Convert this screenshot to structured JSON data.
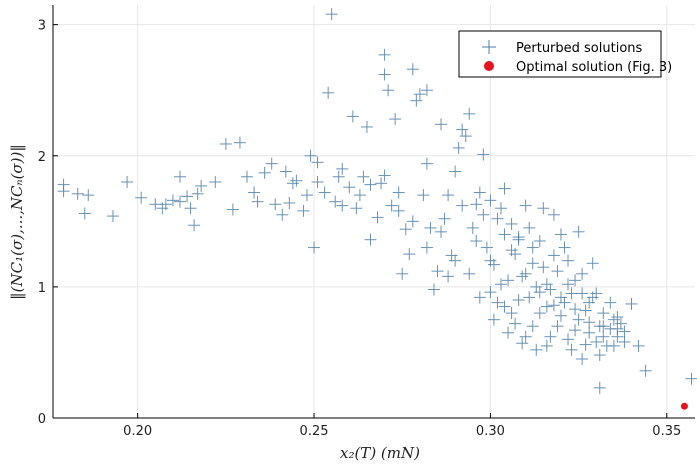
{
  "chart_data": {
    "type": "scatter",
    "title": "",
    "xlabel": "x₂(T)        (mN)",
    "ylabel": "‖(NC₁(σ),...,NCₙ(σ))‖",
    "xlim": [
      0.176,
      0.358
    ],
    "ylim": [
      0,
      3.15
    ],
    "xticks": [
      0.2,
      0.25,
      0.3,
      0.35
    ],
    "xtick_labels": [
      "0.20",
      "0.25",
      "0.30",
      "0.35"
    ],
    "yticks": [
      0,
      1,
      2,
      3
    ],
    "ytick_labels": [
      "0",
      "1",
      "2",
      "3"
    ],
    "grid": true,
    "legend_position": "top-right",
    "colors": {
      "perturbed": "#4f7fa6",
      "optimal": "#e8141c"
    },
    "series": [
      {
        "name": "Perturbed solutions",
        "marker": "plus",
        "points": [
          [
            0.179,
            1.78
          ],
          [
            0.179,
            1.73
          ],
          [
            0.183,
            1.71
          ],
          [
            0.185,
            1.56
          ],
          [
            0.186,
            1.7
          ],
          [
            0.193,
            1.54
          ],
          [
            0.197,
            1.8
          ],
          [
            0.201,
            1.68
          ],
          [
            0.205,
            1.63
          ],
          [
            0.207,
            1.6
          ],
          [
            0.208,
            1.63
          ],
          [
            0.21,
            1.66
          ],
          [
            0.212,
            1.84
          ],
          [
            0.212,
            1.65
          ],
          [
            0.214,
            1.69
          ],
          [
            0.215,
            1.6
          ],
          [
            0.216,
            1.47
          ],
          [
            0.217,
            1.71
          ],
          [
            0.218,
            1.77
          ],
          [
            0.222,
            1.8
          ],
          [
            0.225,
            2.09
          ],
          [
            0.227,
            1.59
          ],
          [
            0.229,
            2.1
          ],
          [
            0.231,
            1.84
          ],
          [
            0.233,
            1.72
          ],
          [
            0.234,
            1.65
          ],
          [
            0.236,
            1.87
          ],
          [
            0.238,
            1.94
          ],
          [
            0.239,
            1.63
          ],
          [
            0.241,
            1.55
          ],
          [
            0.242,
            1.88
          ],
          [
            0.243,
            1.64
          ],
          [
            0.244,
            1.79
          ],
          [
            0.245,
            1.81
          ],
          [
            0.247,
            1.58
          ],
          [
            0.248,
            1.7
          ],
          [
            0.249,
            2.0
          ],
          [
            0.25,
            1.3
          ],
          [
            0.251,
            1.95
          ],
          [
            0.251,
            1.8
          ],
          [
            0.253,
            1.72
          ],
          [
            0.254,
            2.48
          ],
          [
            0.255,
            3.08
          ],
          [
            0.256,
            1.65
          ],
          [
            0.257,
            1.84
          ],
          [
            0.258,
            1.62
          ],
          [
            0.26,
            1.76
          ],
          [
            0.261,
            2.3
          ],
          [
            0.263,
            1.7
          ],
          [
            0.264,
            1.84
          ],
          [
            0.265,
            2.22
          ],
          [
            0.266,
            1.36
          ],
          [
            0.268,
            1.53
          ],
          [
            0.269,
            1.79
          ],
          [
            0.27,
            2.62
          ],
          [
            0.27,
            2.77
          ],
          [
            0.271,
            2.5
          ],
          [
            0.272,
            1.62
          ],
          [
            0.273,
            2.28
          ],
          [
            0.274,
            1.58
          ],
          [
            0.275,
            1.1
          ],
          [
            0.276,
            1.44
          ],
          [
            0.277,
            1.25
          ],
          [
            0.278,
            2.66
          ],
          [
            0.279,
            2.42
          ],
          [
            0.28,
            2.47
          ],
          [
            0.281,
            1.7
          ],
          [
            0.282,
            2.5
          ],
          [
            0.282,
            1.94
          ],
          [
            0.283,
            1.45
          ],
          [
            0.284,
            0.98
          ],
          [
            0.285,
            1.12
          ],
          [
            0.286,
            2.24
          ],
          [
            0.287,
            1.52
          ],
          [
            0.288,
            1.08
          ],
          [
            0.289,
            1.24
          ],
          [
            0.29,
            1.88
          ],
          [
            0.291,
            2.06
          ],
          [
            0.292,
            2.2
          ],
          [
            0.293,
            2.15
          ],
          [
            0.294,
            2.32
          ],
          [
            0.295,
            1.45
          ],
          [
            0.296,
            1.63
          ],
          [
            0.297,
            1.72
          ],
          [
            0.298,
            2.01
          ],
          [
            0.299,
            1.3
          ],
          [
            0.3,
            0.96
          ],
          [
            0.301,
            1.17
          ],
          [
            0.302,
            1.52
          ],
          [
            0.303,
            1.6
          ],
          [
            0.304,
            0.85
          ],
          [
            0.305,
            1.05
          ],
          [
            0.306,
            1.28
          ],
          [
            0.307,
            0.72
          ],
          [
            0.308,
            1.36
          ],
          [
            0.309,
            1.08
          ],
          [
            0.31,
            0.62
          ],
          [
            0.311,
            0.92
          ],
          [
            0.312,
            1.3
          ],
          [
            0.313,
            1.0
          ],
          [
            0.314,
            0.8
          ],
          [
            0.315,
            1.15
          ],
          [
            0.316,
            0.55
          ],
          [
            0.317,
            0.98
          ],
          [
            0.318,
            1.55
          ],
          [
            0.319,
            0.7
          ],
          [
            0.32,
            1.4
          ],
          [
            0.321,
            0.88
          ],
          [
            0.322,
            0.6
          ],
          [
            0.323,
            0.95
          ],
          [
            0.324,
            1.05
          ],
          [
            0.325,
            0.75
          ],
          [
            0.326,
            0.45
          ],
          [
            0.327,
            0.82
          ],
          [
            0.328,
            0.65
          ],
          [
            0.329,
            0.92
          ],
          [
            0.33,
            0.58
          ],
          [
            0.331,
            0.7
          ],
          [
            0.332,
            0.8
          ],
          [
            0.333,
            0.55
          ],
          [
            0.334,
            0.68
          ],
          [
            0.335,
            0.75
          ],
          [
            0.336,
            0.62
          ],
          [
            0.337,
            0.72
          ],
          [
            0.338,
            0.58
          ],
          [
            0.34,
            0.87
          ],
          [
            0.342,
            0.55
          ],
          [
            0.344,
            0.36
          ],
          [
            0.331,
            0.23
          ],
          [
            0.357,
            0.3
          ],
          [
            0.304,
            1.4
          ],
          [
            0.298,
            1.55
          ],
          [
            0.292,
            1.62
          ],
          [
            0.288,
            1.7
          ],
          [
            0.306,
            1.48
          ],
          [
            0.31,
            1.1
          ],
          [
            0.314,
            1.35
          ],
          [
            0.318,
            0.86
          ],
          [
            0.322,
            1.2
          ],
          [
            0.326,
            0.95
          ],
          [
            0.3,
            1.2
          ],
          [
            0.296,
            1.35
          ],
          [
            0.308,
            0.9
          ],
          [
            0.312,
            0.7
          ],
          [
            0.316,
            0.85
          ],
          [
            0.32,
            0.78
          ],
          [
            0.324,
            0.67
          ],
          [
            0.328,
            0.88
          ],
          [
            0.332,
            0.62
          ],
          [
            0.336,
            0.77
          ],
          [
            0.303,
            1.02
          ],
          [
            0.307,
            1.25
          ],
          [
            0.311,
            1.45
          ],
          [
            0.315,
            1.6
          ],
          [
            0.319,
            1.12
          ],
          [
            0.323,
            0.52
          ],
          [
            0.327,
            0.56
          ],
          [
            0.331,
            0.48
          ],
          [
            0.335,
            0.55
          ],
          [
            0.305,
            0.65
          ],
          [
            0.309,
            0.57
          ],
          [
            0.313,
            0.52
          ],
          [
            0.317,
            0.62
          ],
          [
            0.321,
            1.3
          ],
          [
            0.325,
            1.42
          ],
          [
            0.329,
            1.18
          ],
          [
            0.302,
            0.88
          ],
          [
            0.306,
            0.8
          ],
          [
            0.294,
            1.1
          ],
          [
            0.29,
            1.2
          ],
          [
            0.286,
            1.42
          ],
          [
            0.282,
            1.3
          ],
          [
            0.278,
            1.5
          ],
          [
            0.274,
            1.72
          ],
          [
            0.27,
            1.85
          ],
          [
            0.266,
            1.78
          ],
          [
            0.262,
            1.6
          ],
          [
            0.258,
            1.9
          ],
          [
            0.297,
            0.92
          ],
          [
            0.301,
            0.75
          ],
          [
            0.31,
            1.62
          ],
          [
            0.314,
            0.96
          ],
          [
            0.318,
            1.24
          ],
          [
            0.322,
            1.02
          ],
          [
            0.326,
            1.1
          ],
          [
            0.33,
            0.95
          ],
          [
            0.334,
            0.88
          ],
          [
            0.338,
            0.66
          ],
          [
            0.3,
            1.66
          ],
          [
            0.304,
            1.75
          ],
          [
            0.308,
            1.38
          ],
          [
            0.312,
            1.18
          ],
          [
            0.316,
            1.02
          ],
          [
            0.32,
            0.92
          ],
          [
            0.324,
            0.83
          ],
          [
            0.328,
            0.73
          ],
          [
            0.332,
            0.7
          ],
          [
            0.336,
            0.68
          ]
        ]
      },
      {
        "name": "Optimal solution (Fig. 3)",
        "marker": "circle",
        "points": [
          [
            0.355,
            0.09
          ]
        ]
      }
    ]
  }
}
